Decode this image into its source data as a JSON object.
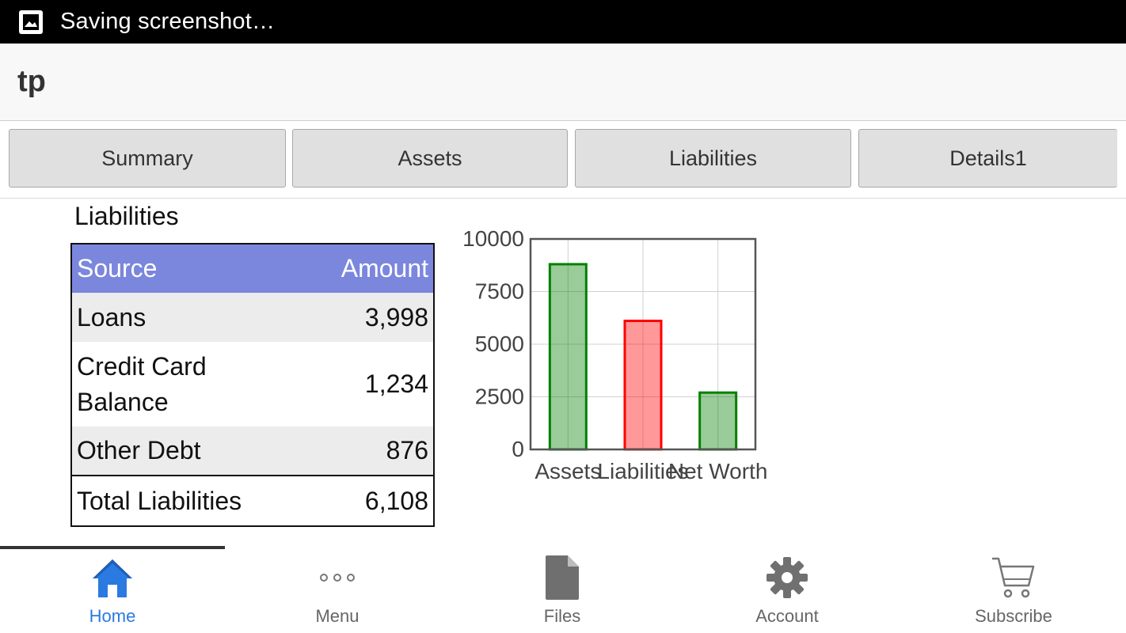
{
  "status_bar": {
    "text": "Saving screenshot…",
    "icon": "image-icon"
  },
  "app": {
    "title": "tp"
  },
  "tabs": [
    {
      "label": "Summary"
    },
    {
      "label": "Assets"
    },
    {
      "label": "Liabilities"
    },
    {
      "label": "Details1"
    }
  ],
  "liabilities": {
    "title": "Liabilities",
    "headers": {
      "source": "Source",
      "amount": "Amount"
    },
    "rows": [
      {
        "source": "Loans",
        "amount": "3,998"
      },
      {
        "source_line1": "Credit Card",
        "source_line2": "Balance",
        "amount": "1,234"
      },
      {
        "source": "Other Debt",
        "amount": "876"
      }
    ],
    "total": {
      "source": "Total Liabilities",
      "amount": "6,108"
    },
    "header_color": "#7b86dd"
  },
  "chart_data": {
    "type": "bar",
    "categories": [
      "Assets",
      "Liabilities",
      "Net Worth"
    ],
    "values": [
      8800,
      6108,
      2700
    ],
    "colors": [
      "#008000",
      "#ff0000",
      "#008000"
    ],
    "yticks": [
      "10000",
      "7500",
      "5000",
      "2500",
      "0"
    ],
    "ylim": [
      0,
      10000
    ],
    "grid": true,
    "title": "",
    "xlabel": "",
    "ylabel": ""
  },
  "bottom_nav": {
    "items": [
      {
        "label": "Home",
        "icon": "home-icon",
        "active": true
      },
      {
        "label": "Menu",
        "icon": "more-icon",
        "active": false
      },
      {
        "label": "Files",
        "icon": "file-icon",
        "active": false
      },
      {
        "label": "Account",
        "icon": "gear-icon",
        "active": false
      },
      {
        "label": "Subscribe",
        "icon": "cart-icon",
        "active": false
      }
    ],
    "active_color": "#2a7ae2"
  }
}
